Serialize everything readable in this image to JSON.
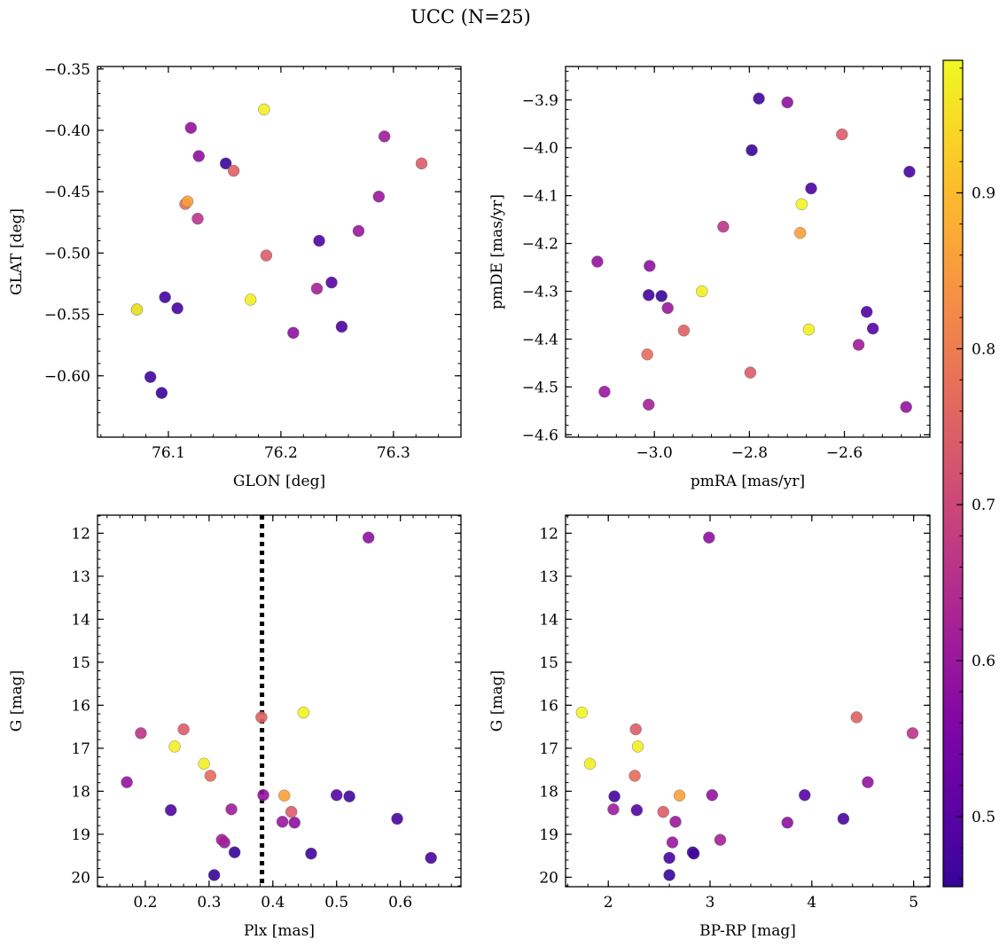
{
  "figure": {
    "title": "UCC (N=25)"
  },
  "colorbar": {
    "vmin": 0.455,
    "vmax": 0.985,
    "ticks": [
      "0.5",
      "0.6",
      "0.7",
      "0.8",
      "0.9"
    ],
    "colormap": "plasma"
  },
  "chart_data": [
    {
      "type": "scatter",
      "title": "",
      "xlabel": "GLON [deg]",
      "ylabel": "GLAT [deg]",
      "xlim": [
        76.037,
        76.36
      ],
      "ylim": [
        -0.65,
        -0.348
      ],
      "y_inverted": false,
      "xticks": [
        "76.1",
        "76.2",
        "76.3"
      ],
      "yticks": [
        "−0.35",
        "−0.40",
        "−0.45",
        "−0.50",
        "−0.55",
        "−0.60"
      ],
      "grid": false
    },
    {
      "type": "scatter",
      "title": "",
      "xlabel": "pmRA [mas/yr]",
      "ylabel": "pmDE [mas/yr]",
      "xlim": [
        -3.187,
        -2.42
      ],
      "ylim": [
        -4.605,
        -3.83
      ],
      "y_inverted": false,
      "xticks": [
        "−3.0",
        "−2.8",
        "−2.6"
      ],
      "yticks": [
        "−3.9",
        "−4.0",
        "−4.1",
        "−4.2",
        "−4.3",
        "−4.4",
        "−4.5",
        "−4.6"
      ],
      "grid": false
    },
    {
      "type": "scatter",
      "title": "",
      "xlabel": "Plx [mas]",
      "ylabel": "G [mag]",
      "xlim": [
        0.125,
        0.695
      ],
      "ylim": [
        20.22,
        11.58
      ],
      "y_inverted": true,
      "xticks": [
        "0.2",
        "0.3",
        "0.4",
        "0.5",
        "0.6"
      ],
      "yticks": [
        "12",
        "13",
        "14",
        "15",
        "16",
        "17",
        "18",
        "19",
        "20"
      ],
      "vline": {
        "x": 0.383,
        "style": "dotted"
      },
      "grid": false
    },
    {
      "type": "scatter",
      "title": "",
      "xlabel": "BP-RP [mag]",
      "ylabel": "G [mag]",
      "xlim": [
        1.58,
        5.16
      ],
      "ylim": [
        20.22,
        11.58
      ],
      "y_inverted": true,
      "xticks": [
        "2",
        "3",
        "4",
        "5"
      ],
      "yticks": [
        "12",
        "13",
        "14",
        "15",
        "16",
        "17",
        "18",
        "19",
        "20"
      ],
      "grid": false
    }
  ],
  "stars": [
    {
      "glon": 76.072,
      "glat": -0.546,
      "pmra": -2.69,
      "pmde": -4.118,
      "plx": 0.448,
      "g": 16.17,
      "bprp": 1.74,
      "p": 0.98
    },
    {
      "glon": 76.097,
      "glat": -0.536,
      "pmra": -3.012,
      "pmde": -4.308,
      "plx": 0.52,
      "g": 18.12,
      "bprp": 2.06,
      "p": 0.47
    },
    {
      "glon": 76.084,
      "glat": -0.601,
      "pmra": -2.78,
      "pmde": -3.897,
      "plx": 0.46,
      "g": 19.45,
      "bprp": 2.84,
      "p": 0.47
    },
    {
      "glon": 76.094,
      "glat": -0.614,
      "pmra": -2.795,
      "pmde": -4.005,
      "plx": 0.34,
      "g": 19.42,
      "bprp": 2.83,
      "p": 0.46
    },
    {
      "glon": 76.108,
      "glat": -0.545,
      "pmra": -2.67,
      "pmde": -4.085,
      "plx": 0.595,
      "g": 18.64,
      "bprp": 4.31,
      "p": 0.48
    },
    {
      "glon": 76.117,
      "glat": -0.458,
      "pmra": -2.693,
      "pmde": -4.178,
      "plx": 0.418,
      "g": 18.1,
      "bprp": 2.7,
      "p": 0.86
    },
    {
      "glon": 76.115,
      "glat": -0.46,
      "pmra": -3.015,
      "pmde": -4.432,
      "plx": 0.302,
      "g": 17.64,
      "bprp": 2.26,
      "p": 0.77
    },
    {
      "glon": 76.12,
      "glat": -0.398,
      "pmra": -3.12,
      "pmde": -4.238,
      "plx": 0.171,
      "g": 17.79,
      "bprp": 4.55,
      "p": 0.59
    },
    {
      "glon": 76.127,
      "glat": -0.421,
      "pmra": -3.01,
      "pmde": -4.247,
      "plx": 0.434,
      "g": 18.73,
      "bprp": 3.76,
      "p": 0.58
    },
    {
      "glon": 76.126,
      "glat": -0.472,
      "pmra": -2.855,
      "pmde": -4.165,
      "plx": 0.193,
      "g": 16.65,
      "bprp": 4.99,
      "p": 0.66
    },
    {
      "glon": 76.151,
      "glat": -0.427,
      "pmra": -2.985,
      "pmde": -4.31,
      "plx": 0.308,
      "g": 19.95,
      "bprp": 2.6,
      "p": 0.46
    },
    {
      "glon": 76.158,
      "glat": -0.433,
      "pmra": -2.938,
      "pmde": -4.382,
      "plx": 0.382,
      "g": 16.28,
      "bprp": 4.44,
      "p": 0.75
    },
    {
      "glon": 76.185,
      "glat": -0.383,
      "pmra": -2.9,
      "pmde": -4.3,
      "plx": 0.246,
      "g": 16.96,
      "bprp": 2.29,
      "p": 0.97
    },
    {
      "glon": 76.187,
      "glat": -0.502,
      "pmra": -2.605,
      "pmde": -3.972,
      "plx": 0.26,
      "g": 16.56,
      "bprp": 2.27,
      "p": 0.74
    },
    {
      "glon": 76.173,
      "glat": -0.538,
      "pmra": -2.675,
      "pmde": -4.38,
      "plx": 0.292,
      "g": 17.36,
      "bprp": 1.82,
      "p": 0.97
    },
    {
      "glon": 76.211,
      "glat": -0.565,
      "pmra": -2.72,
      "pmde": -3.905,
      "plx": 0.55,
      "g": 12.1,
      "bprp": 2.99,
      "p": 0.58
    },
    {
      "glon": 76.234,
      "glat": -0.49,
      "pmra": -2.553,
      "pmde": -4.343,
      "plx": 0.24,
      "g": 18.44,
      "bprp": 2.28,
      "p": 0.49
    },
    {
      "glon": 76.245,
      "glat": -0.524,
      "pmra": -2.54,
      "pmde": -4.378,
      "plx": 0.5,
      "g": 18.09,
      "bprp": 3.93,
      "p": 0.5
    },
    {
      "glon": 76.254,
      "glat": -0.56,
      "pmra": -2.463,
      "pmde": -4.05,
      "plx": 0.648,
      "g": 19.55,
      "bprp": 2.6,
      "p": 0.48
    },
    {
      "glon": 76.269,
      "glat": -0.482,
      "pmra": -3.105,
      "pmde": -4.51,
      "plx": 0.415,
      "g": 18.71,
      "bprp": 2.66,
      "p": 0.6
    },
    {
      "glon": 76.287,
      "glat": -0.454,
      "pmra": -2.972,
      "pmde": -4.335,
      "plx": 0.324,
      "g": 19.19,
      "bprp": 2.63,
      "p": 0.6
    },
    {
      "glon": 76.292,
      "glat": -0.405,
      "pmra": -2.57,
      "pmde": -4.412,
      "plx": 0.335,
      "g": 18.42,
      "bprp": 2.05,
      "p": 0.61
    },
    {
      "glon": 76.325,
      "glat": -0.427,
      "pmra": -2.798,
      "pmde": -4.47,
      "plx": 0.429,
      "g": 18.48,
      "bprp": 2.54,
      "p": 0.74
    },
    {
      "glon": 76.232,
      "glat": -0.529,
      "pmra": -3.012,
      "pmde": -4.537,
      "plx": 0.32,
      "g": 19.13,
      "bprp": 3.1,
      "p": 0.62
    },
    {
      "glon": 76.072,
      "glat": -0.546,
      "pmra": -2.47,
      "pmde": -4.542,
      "plx": 0.385,
      "g": 18.09,
      "bprp": 3.02,
      "p": 0.59
    }
  ]
}
